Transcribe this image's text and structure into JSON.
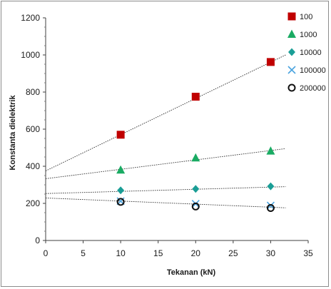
{
  "chart_data": {
    "type": "scatter",
    "title": "",
    "xlabel": "Tekanan (kN)",
    "ylabel": "Konstanta dielektrik",
    "xlim": [
      0,
      35
    ],
    "ylim": [
      0,
      1200
    ],
    "xticks": [
      0,
      5,
      10,
      15,
      20,
      25,
      30,
      35
    ],
    "yticks": [
      0,
      200,
      400,
      600,
      800,
      1000,
      1200
    ],
    "grid": false,
    "legend_position": "top-right",
    "series": [
      {
        "name": "100",
        "marker": "square",
        "color": "#c00000",
        "x": [
          10,
          20,
          30
        ],
        "y": [
          570,
          775,
          962
        ],
        "trend": {
          "x": [
            0,
            32
          ],
          "y": [
            375,
            1000
          ]
        }
      },
      {
        "name": "1000",
        "marker": "triangle",
        "color": "#1aab63",
        "x": [
          10,
          20,
          30
        ],
        "y": [
          380,
          445,
          482
        ],
        "trend": {
          "x": [
            0,
            32
          ],
          "y": [
            333,
            495
          ]
        }
      },
      {
        "name": "10000",
        "marker": "diamond",
        "color": "#1a9e96",
        "x": [
          10,
          20,
          30
        ],
        "y": [
          270,
          278,
          292
        ],
        "trend": {
          "x": [
            0,
            32
          ],
          "y": [
            253,
            290
          ]
        }
      },
      {
        "name": "100000",
        "marker": "x",
        "color": "#4aa3df",
        "x": [
          10,
          20,
          30
        ],
        "y": [
          212,
          198,
          188
        ],
        "trend": {
          "x": [
            0,
            32
          ],
          "y": [
            229,
            176
          ]
        }
      },
      {
        "name": "200000",
        "marker": "circle",
        "color": "#111111",
        "x": [
          10,
          20,
          30
        ],
        "y": [
          208,
          183,
          175
        ]
      }
    ]
  }
}
